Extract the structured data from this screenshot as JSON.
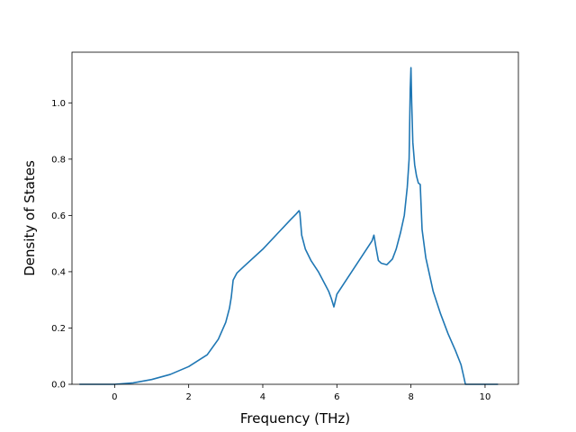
{
  "chart_data": {
    "type": "line",
    "title": "",
    "xlabel": "Frequency (THz)",
    "ylabel": "Density of States",
    "xlim": [
      -1.15,
      10.9
    ],
    "ylim": [
      0.0,
      1.18
    ],
    "xticks": [
      0,
      2,
      4,
      6,
      8,
      10
    ],
    "yticks": [
      0.0,
      0.2,
      0.4,
      0.6,
      0.8,
      1.0
    ],
    "xtick_labels": [
      "0",
      "2",
      "4",
      "6",
      "8",
      "10"
    ],
    "ytick_labels": [
      "0.0",
      "0.2",
      "0.4",
      "0.6",
      "0.8",
      "1.0"
    ],
    "grid": false,
    "line_color": "#1f77b4",
    "series": [
      {
        "x": [
          -0.95,
          0.0,
          0.5,
          1.0,
          1.5,
          2.0,
          2.5,
          2.8,
          3.0,
          3.1,
          3.15,
          3.2,
          3.3,
          3.5,
          4.0,
          4.5,
          4.75,
          4.9,
          4.98,
          5.0,
          5.05,
          5.15,
          5.3,
          5.5,
          5.7,
          5.78,
          5.85,
          5.92,
          6.0,
          6.2,
          6.5,
          6.8,
          6.9,
          6.95,
          7.0,
          7.05,
          7.12,
          7.2,
          7.35,
          7.5,
          7.6,
          7.72,
          7.82,
          7.9,
          7.95,
          7.98,
          8.0,
          8.02,
          8.05,
          8.1,
          8.15,
          8.2,
          8.25,
          8.3,
          8.4,
          8.6,
          8.8,
          9.0,
          9.2,
          9.35,
          9.42,
          9.47,
          9.52,
          9.8,
          10.35
        ],
        "y": [
          0.0,
          0.0,
          0.005,
          0.017,
          0.035,
          0.063,
          0.105,
          0.16,
          0.22,
          0.27,
          0.31,
          0.37,
          0.395,
          0.42,
          0.48,
          0.55,
          0.585,
          0.605,
          0.617,
          0.61,
          0.53,
          0.48,
          0.44,
          0.4,
          0.35,
          0.33,
          0.305,
          0.275,
          0.32,
          0.36,
          0.42,
          0.48,
          0.5,
          0.51,
          0.53,
          0.49,
          0.44,
          0.43,
          0.425,
          0.445,
          0.48,
          0.54,
          0.6,
          0.7,
          0.8,
          1.05,
          1.125,
          1.0,
          0.86,
          0.78,
          0.74,
          0.715,
          0.71,
          0.55,
          0.45,
          0.33,
          0.25,
          0.18,
          0.12,
          0.07,
          0.03,
          0.0,
          0.0,
          0.0,
          0.0
        ]
      }
    ]
  }
}
